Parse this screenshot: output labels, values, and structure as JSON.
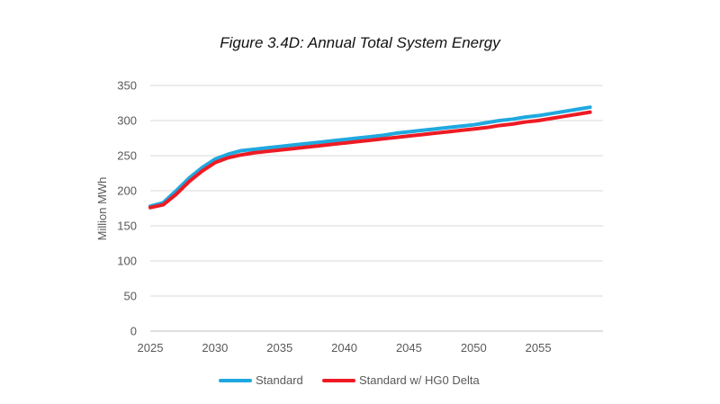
{
  "chart_data": {
    "type": "line",
    "title": "Figure 3.4D: Annual Total System Energy",
    "xlabel": "",
    "ylabel": "Million MWh",
    "xlim": [
      2025,
      2060
    ],
    "ylim": [
      0,
      350
    ],
    "x_ticks": [
      2025,
      2030,
      2035,
      2040,
      2045,
      2050,
      2055
    ],
    "y_ticks": [
      0,
      50,
      100,
      150,
      200,
      250,
      300,
      350
    ],
    "grid": "horizontal",
    "legend_position": "bottom",
    "x": [
      2025,
      2026,
      2027,
      2028,
      2029,
      2030,
      2031,
      2032,
      2033,
      2034,
      2035,
      2036,
      2037,
      2038,
      2039,
      2040,
      2041,
      2042,
      2043,
      2044,
      2045,
      2046,
      2047,
      2048,
      2049,
      2050,
      2051,
      2052,
      2053,
      2054,
      2055,
      2056,
      2057,
      2058,
      2059
    ],
    "series": [
      {
        "name": "Standard",
        "color": "#1FA8E0",
        "values": [
          178,
          183,
          200,
          218,
          233,
          245,
          252,
          257,
          259,
          261,
          263,
          265,
          267,
          269,
          271,
          273,
          275,
          277,
          279,
          282,
          284,
          286,
          288,
          290,
          292,
          294,
          297,
          300,
          302,
          305,
          307,
          310,
          313,
          316,
          319
        ]
      },
      {
        "name": "Standard w/ HG0 Delta",
        "color": "#EE1B24",
        "values": [
          176,
          180,
          195,
          213,
          228,
          240,
          247,
          251,
          254,
          256,
          258,
          260,
          262,
          264,
          266,
          268,
          270,
          272,
          274,
          276,
          278,
          280,
          282,
          284,
          286,
          288,
          290,
          293,
          295,
          298,
          300,
          303,
          306,
          309,
          312
        ]
      }
    ]
  }
}
